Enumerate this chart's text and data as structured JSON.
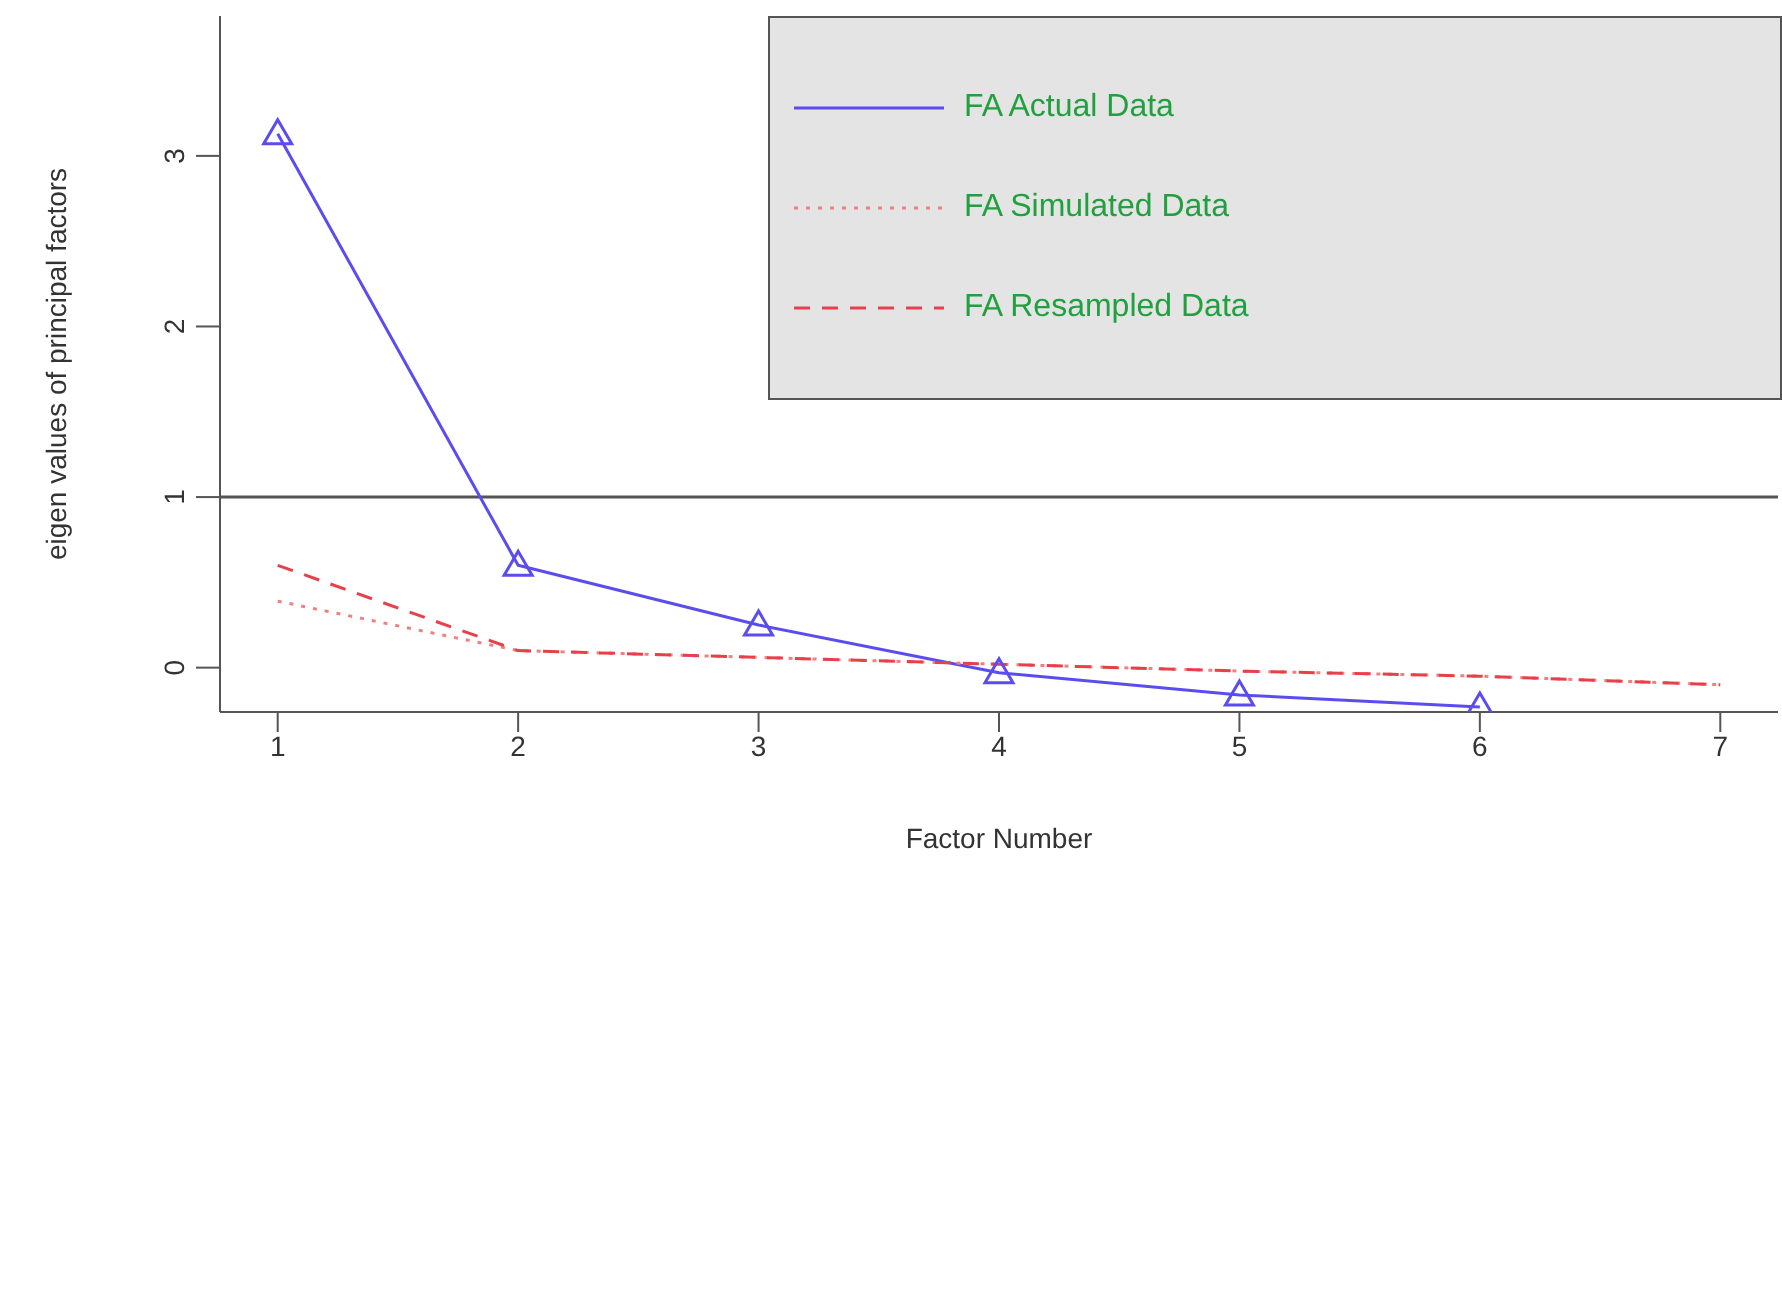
{
  "chart_data": {
    "type": "line",
    "xlabel": "Factor Number",
    "ylabel": "eigen values of principal factors",
    "x": [
      1,
      2,
      3,
      4,
      5,
      6,
      7
    ],
    "series": [
      {
        "name": "FA  Actual Data",
        "color": "#5b4cf0",
        "values": [
          3.13,
          0.6,
          0.25,
          -0.03,
          -0.16,
          -0.23,
          null
        ],
        "marker": "triangle",
        "line_style": "solid"
      },
      {
        "name": "FA  Simulated Data",
        "color": "#f08080",
        "values": [
          0.39,
          0.1,
          0.06,
          0.02,
          -0.02,
          -0.05,
          -0.1
        ],
        "marker": "none",
        "line_style": "dotted"
      },
      {
        "name": "FA  Resampled Data",
        "color": "#e8404a",
        "values": [
          0.6,
          0.1,
          0.06,
          0.02,
          -0.02,
          -0.05,
          -0.1
        ],
        "marker": "none",
        "line_style": "dashed"
      }
    ],
    "xlim": [
      0.76,
      7.24
    ],
    "ylim": [
      -0.26,
      3.82
    ],
    "xticks": [
      1,
      2,
      3,
      4,
      5,
      6,
      7
    ],
    "yticks": [
      0,
      1,
      2,
      3
    ],
    "ref_lines": [
      {
        "axis": "y",
        "value": 1,
        "color": "#555555"
      }
    ],
    "legend": "top right",
    "grid": false
  }
}
